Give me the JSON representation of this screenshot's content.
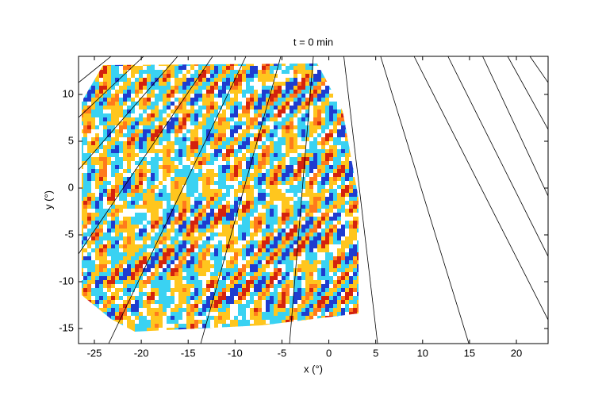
{
  "chart_data": {
    "type": "line",
    "title": "t = 0 min",
    "x_label": "x (°)",
    "y_label": "y (°)",
    "xlim": [
      -26.69,
      23.38
    ],
    "ylim": [
      -16.61,
      14.07
    ],
    "xticks": [
      -25,
      -20,
      -15,
      -10,
      -5,
      0,
      5,
      10,
      15,
      20
    ],
    "yticks": [
      -15,
      -10,
      -5,
      0,
      5,
      10
    ],
    "series": [
      {
        "color": "#000000",
        "x": [
          -26.69,
          -23.22
        ],
        "y": [
          11.27,
          14.07
        ]
      },
      {
        "color": "#000000",
        "x": [
          -26.69,
          -19.75
        ],
        "y": [
          7.54,
          14.07
        ]
      },
      {
        "color": "#000000",
        "x": [
          -26.69,
          -16.12
        ],
        "y": [
          1.95,
          14.07
        ]
      },
      {
        "color": "#000000",
        "x": [
          -26.69,
          -12.39
        ],
        "y": [
          -7.03,
          14.07
        ]
      },
      {
        "color": "#000000",
        "x": [
          -23.48,
          -8.84
        ],
        "y": [
          -16.61,
          14.07
        ]
      },
      {
        "color": "#000000",
        "x": [
          -13.66,
          -5.12
        ],
        "y": [
          -16.61,
          14.07
        ]
      },
      {
        "color": "#000000",
        "x": [
          -4.19,
          -1.65
        ],
        "y": [
          -16.61,
          14.07
        ]
      },
      {
        "color": "#000000",
        "x": [
          5.2,
          1.6
        ],
        "y": [
          -16.61,
          14.07
        ]
      },
      {
        "color": "#000000",
        "x": [
          14.93,
          5.52
        ],
        "y": [
          -16.61,
          14.07
        ]
      },
      {
        "color": "#000000",
        "x": [
          23.38,
          9.09
        ],
        "y": [
          -14.07,
          14.07
        ]
      },
      {
        "color": "#000000",
        "x": [
          23.38,
          12.7
        ],
        "y": [
          -7.29,
          14.07
        ]
      },
      {
        "color": "#000000",
        "x": [
          23.38,
          16.4
        ],
        "y": [
          -0.85,
          14.07
        ]
      },
      {
        "color": "#000000",
        "x": [
          23.38,
          19.07
        ],
        "y": [
          6.27,
          14.07
        ]
      },
      {
        "color": "#000000",
        "x": [
          23.38,
          21.44
        ],
        "y": [
          11.27,
          14.07
        ]
      }
    ]
  }
}
